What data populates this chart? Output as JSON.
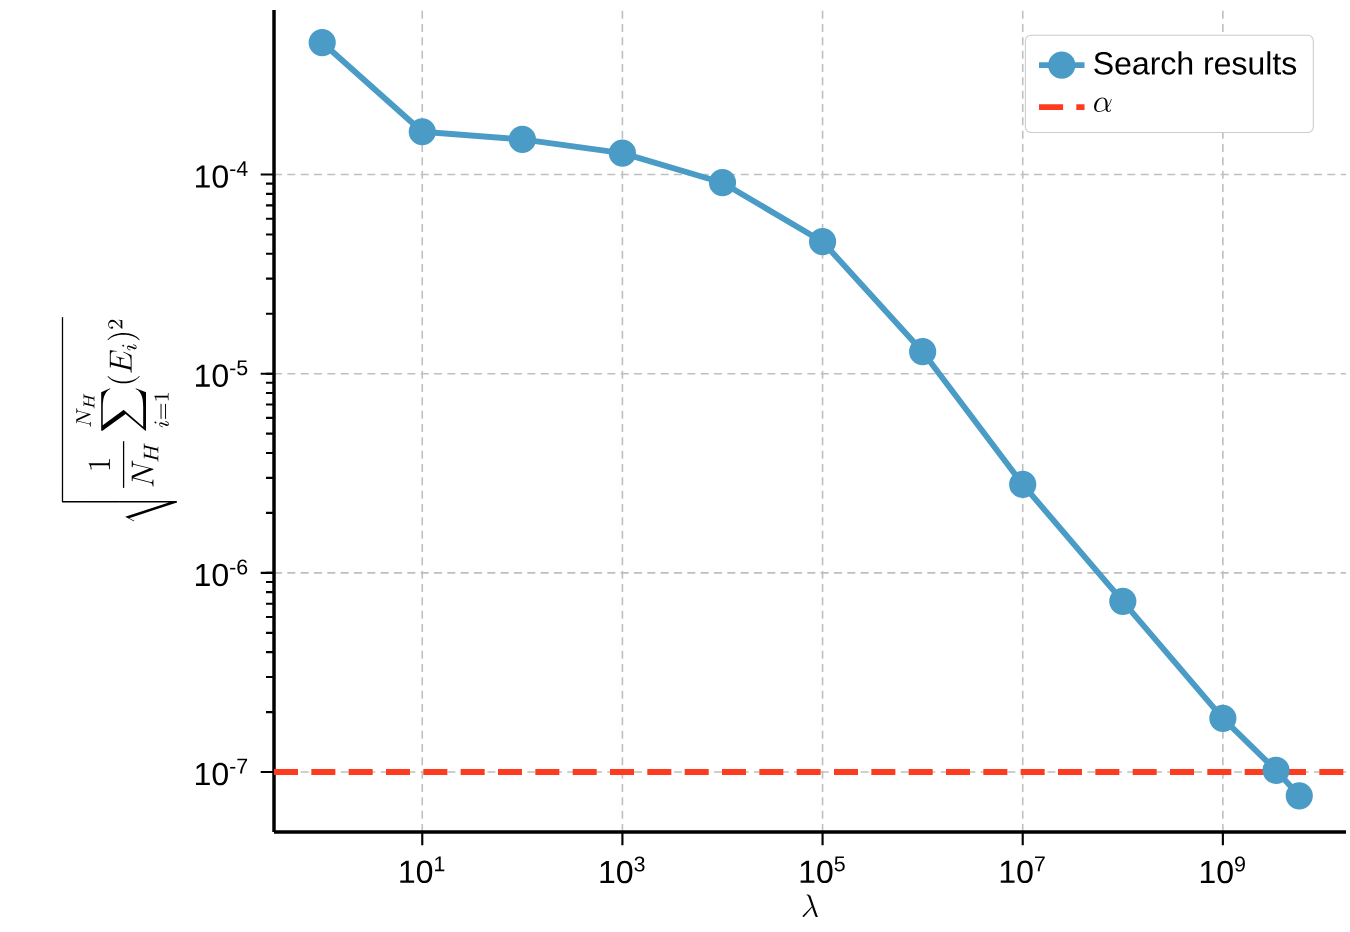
{
  "chart_data": {
    "type": "line",
    "xlabel": "\\lambda",
    "ylabel": "\\sqrt{\\frac{1}{N_H}\\sum_{i=1}^{N_H}(E_i)^2}",
    "x": [
      1,
      10,
      100,
      1000,
      10000,
      100000,
      1000000,
      10000000,
      100000000,
      1000000000,
      3400000000,
      5800000000
    ],
    "series": [
      {
        "name": "Search results",
        "color": "#4a9cc7",
        "values": [
          0.00046,
          0.000164,
          0.00015,
          0.000128,
          9.1e-05,
          4.6e-05,
          1.29e-05,
          2.78e-06,
          7.2e-07,
          1.86e-07,
          1.02e-07,
          7.6e-08
        ]
      }
    ],
    "ref_lines": [
      {
        "axis": "y",
        "value": 1e-07,
        "label": "\\alpha",
        "color": "#ff3b1f",
        "line_style": "dashed"
      }
    ],
    "xlim": [
      0.33,
      17000000000.0
    ],
    "ylim": [
      5e-08,
      0.00067
    ],
    "xticks": [
      {
        "value": 10,
        "label": "10$^{1}$"
      },
      {
        "value": 1000,
        "label": "10$^{3}$"
      },
      {
        "value": 100000,
        "label": "10$^{5}$"
      },
      {
        "value": 10000000,
        "label": "10$^{7}$"
      },
      {
        "value": 1000000000,
        "label": "10$^{9}$"
      }
    ],
    "yticks": [
      {
        "value": 1e-07,
        "label": "10$^{-7}$"
      },
      {
        "value": 1e-06,
        "label": "10$^{-6}$"
      },
      {
        "value": 1e-05,
        "label": "10$^{-5}$"
      },
      {
        "value": 0.0001,
        "label": "10$^{-4}$"
      }
    ],
    "log": "xy",
    "grid": true,
    "legend": "top right",
    "marker": "circle",
    "line_style": "solid"
  }
}
